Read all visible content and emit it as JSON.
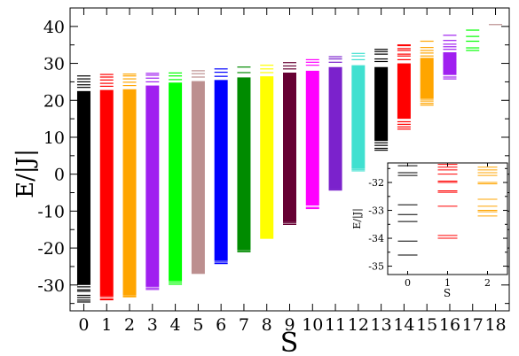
{
  "chart_data": [
    {
      "type": "bar",
      "description_visible": "energy level spectra per spin sector",
      "xlabel": "S",
      "ylabel": "E/|J|",
      "xlim": [
        -0.6,
        18.6
      ],
      "ylim": [
        -37,
        45
      ],
      "x_ticks": [
        0,
        1,
        2,
        3,
        4,
        5,
        6,
        7,
        8,
        9,
        10,
        11,
        12,
        13,
        14,
        15,
        16,
        17,
        18
      ],
      "y_ticks": [
        -30,
        -20,
        -10,
        0,
        10,
        20,
        30,
        40
      ],
      "grid": false,
      "series": [
        {
          "s": 0,
          "color": "#000000",
          "band": [
            -30.0,
            22.5
          ],
          "levels": [
            -34.6,
            -34.1,
            -33.4,
            -32.8,
            -31.7,
            -31.3,
            -30.5,
            23.5,
            24.2,
            25.0,
            25.8,
            26.6
          ]
        },
        {
          "s": 1,
          "color": "#ff0000",
          "band": [
            -33.0,
            22.8
          ],
          "levels": [
            -34.0,
            -33.8,
            -33.2,
            23.8,
            24.6,
            25.5,
            26.3,
            27.0
          ]
        },
        {
          "s": 2,
          "color": "#ffa500",
          "band": [
            -32.8,
            23.0
          ],
          "levels": [
            -33.2,
            -33.0,
            24.0,
            24.9,
            25.8,
            26.6,
            27.1
          ]
        },
        {
          "s": 3,
          "color": "#a020f0",
          "band": [
            -30.5,
            24.0
          ],
          "levels": [
            -31.2,
            -30.8,
            25.0,
            26.0,
            26.8,
            27.3
          ]
        },
        {
          "s": 4,
          "color": "#00ff00",
          "band": [
            -29.0,
            24.8
          ],
          "levels": [
            -29.8,
            -29.3,
            25.6,
            26.6,
            27.4
          ]
        },
        {
          "s": 5,
          "color": "#bc8f8f",
          "band": [
            -27.0,
            25.2
          ],
          "levels": [
            26.3,
            27.2,
            28.0
          ]
        },
        {
          "s": 6,
          "color": "#0000ff",
          "band": [
            -23.5,
            25.5
          ],
          "levels": [
            -24.2,
            -23.8,
            26.5,
            27.6,
            28.5
          ]
        },
        {
          "s": 7,
          "color": "#008b00",
          "band": [
            -20.5,
            26.2
          ],
          "levels": [
            -21.0,
            -20.7,
            27.5,
            29.0
          ]
        },
        {
          "s": 8,
          "color": "#ffff00",
          "band": [
            -17.5,
            26.5
          ],
          "levels": [
            27.5,
            28.5,
            29.5
          ]
        },
        {
          "s": 9,
          "color": "#660033",
          "band": [
            -13.0,
            27.5
          ],
          "levels": [
            -13.6,
            -13.2,
            28.5,
            29.3,
            30.2
          ]
        },
        {
          "s": 10,
          "color": "#ff00ff",
          "band": [
            -8.5,
            28.0
          ],
          "levels": [
            -9.3,
            -9.0,
            29.5,
            30.3,
            31.0
          ]
        },
        {
          "s": 11,
          "color": "#7b22cc",
          "band": [
            -4.0,
            29.0
          ],
          "levels": [
            -4.3,
            -4.0,
            30.3,
            31.2,
            31.8
          ]
        },
        {
          "s": 12,
          "color": "#40e0d0",
          "band": [
            1.5,
            29.5
          ],
          "levels": [
            0.9,
            1.3,
            31.0,
            32.0,
            32.7
          ]
        },
        {
          "s": 13,
          "color": "#000000",
          "band": [
            9.0,
            29.0
          ],
          "levels": [
            6.5,
            7.0,
            7.8,
            8.5,
            30.5,
            31.2,
            32.5,
            33.2,
            33.8
          ]
        },
        {
          "s": 14,
          "color": "#ff0000",
          "band": [
            15.0,
            30.0
          ],
          "levels": [
            12.2,
            12.8,
            13.5,
            14.2,
            31.0,
            32.0,
            32.5,
            33.5,
            34.0,
            34.8,
            35.0
          ]
        },
        {
          "s": 15,
          "color": "#ffa500",
          "band": [
            20.5,
            31.5
          ],
          "levels": [
            18.7,
            19.2,
            19.8,
            20.3,
            32.0,
            32.8,
            33.5,
            34.3,
            36.0
          ]
        },
        {
          "s": 16,
          "color": "#a020f0",
          "band": [
            27.0,
            33.0
          ],
          "levels": [
            25.8,
            26.3,
            27.0,
            28.0,
            28.8,
            29.8,
            31.0,
            32.0,
            33.8,
            34.5,
            35.2,
            36.2,
            37.6
          ]
        },
        {
          "s": 17,
          "color": "#00ff00",
          "band": null,
          "levels": [
            33.5,
            34.2,
            36.0,
            37.3,
            39.0
          ]
        },
        {
          "s": 18,
          "color": "#bc8f8f",
          "band": null,
          "levels": [
            40.5
          ]
        }
      ]
    },
    {
      "type": "bar",
      "inset": true,
      "xlabel": "S",
      "ylabel": "E/|J|",
      "xlim": [
        -0.5,
        2.5
      ],
      "ylim": [
        -35.3,
        -31.3
      ],
      "x_ticks": [
        0,
        1,
        2
      ],
      "y_ticks": [
        -35,
        -34,
        -33,
        -32
      ],
      "series": [
        {
          "s": 0,
          "color": "#000000",
          "levels": [
            -31.4,
            -31.65,
            -31.75,
            -32.8,
            -33.15,
            -33.4,
            -34.1,
            -34.6
          ]
        },
        {
          "s": 1,
          "color": "#ff0000",
          "levels": [
            -31.35,
            -31.45,
            -31.55,
            -31.7,
            -31.95,
            -32.0,
            -32.3,
            -32.35,
            -32.85,
            -33.9,
            -34.0
          ]
        },
        {
          "s": 2,
          "color": "#ffa500",
          "levels": [
            -31.45,
            -31.55,
            -31.65,
            -31.75,
            -32.0,
            -32.05,
            -32.6,
            -32.85,
            -33.0,
            -33.05,
            -33.2
          ]
        }
      ]
    }
  ]
}
